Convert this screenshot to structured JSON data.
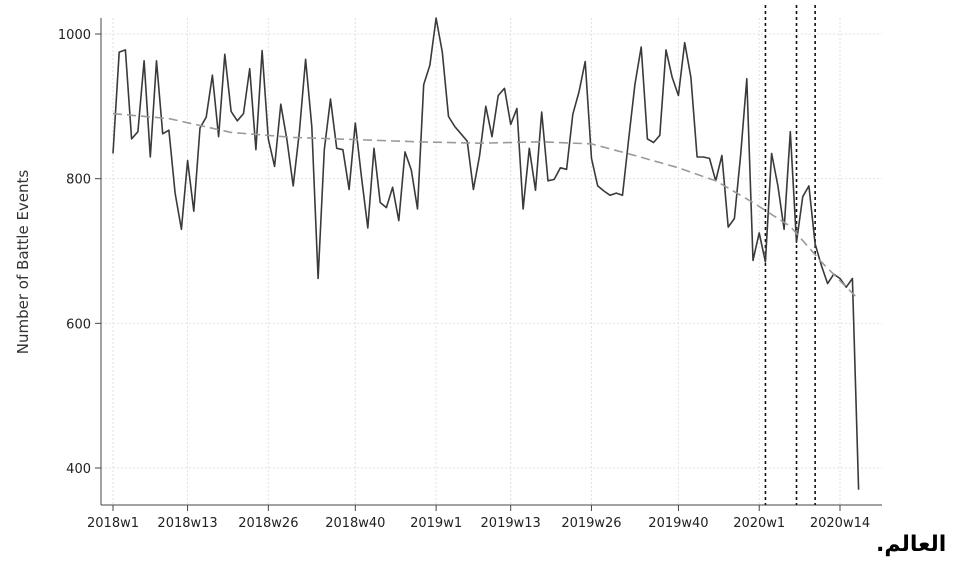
{
  "caption": "العالم.",
  "chart_data": {
    "type": "line",
    "title": "",
    "xlabel": "",
    "ylabel": "Number of Battle Events",
    "ylim": [
      350,
      1030
    ],
    "yticks": [
      400,
      600,
      800,
      1000
    ],
    "x_tick_labels": [
      "2018w1",
      "2018w13",
      "2018w26",
      "2018w40",
      "2019w1",
      "2019w13",
      "2019w26",
      "2019w40",
      "2020w1",
      "2020w14"
    ],
    "x_tick_weeks": [
      1,
      13,
      26,
      40,
      53,
      65,
      78,
      92,
      105,
      118
    ],
    "grid": true,
    "vertical_dashed_lines_weeks": [
      106,
      111,
      114
    ],
    "series": [
      {
        "style": "solid",
        "x": [
          1,
          2,
          3,
          4,
          5,
          6,
          7,
          8,
          9,
          10,
          11,
          12,
          13,
          14,
          15,
          16,
          17,
          18,
          19,
          20,
          21,
          22,
          23,
          24,
          25,
          26,
          27,
          28,
          29,
          30,
          31,
          32,
          33,
          34,
          35,
          36,
          37,
          38,
          39,
          40,
          41,
          42,
          43,
          44,
          45,
          46,
          47,
          48,
          49,
          50,
          51,
          52,
          53,
          54,
          55,
          56,
          57,
          58,
          59,
          60,
          61,
          62,
          63,
          64,
          65,
          66,
          67,
          68,
          69,
          70,
          71,
          72,
          73,
          74,
          75,
          76,
          77,
          78,
          79,
          80,
          81,
          82,
          83,
          84,
          85,
          86,
          87,
          88,
          89,
          90,
          91,
          92,
          93,
          94,
          95,
          96,
          97,
          98,
          99,
          100,
          101,
          102,
          103,
          104,
          105,
          106,
          107,
          108,
          109,
          110,
          111,
          112,
          113,
          114,
          115,
          116,
          117,
          118,
          119,
          120,
          121
        ],
        "values": [
          835,
          975,
          978,
          855,
          865,
          963,
          830,
          963,
          862,
          867,
          780,
          730,
          825,
          755,
          870,
          885,
          943,
          858,
          972,
          893,
          880,
          890,
          952,
          840,
          977,
          855,
          817,
          903,
          853,
          790,
          865,
          965,
          872,
          662,
          840,
          910,
          842,
          840,
          785,
          877,
          802,
          732,
          842,
          767,
          760,
          788,
          742,
          837,
          812,
          758,
          930,
          957,
          1022,
          975,
          886,
          872,
          862,
          852,
          785,
          832,
          900,
          858,
          915,
          925,
          875,
          897,
          758,
          842,
          784,
          892,
          797,
          799,
          815,
          813,
          889,
          920,
          962,
          828,
          790,
          783,
          777,
          780,
          777,
          855,
          930,
          982,
          855,
          850,
          860,
          978,
          940,
          915,
          988,
          940,
          830,
          830,
          828,
          797,
          832,
          733,
          745,
          832,
          938,
          687,
          725,
          685,
          835,
          790,
          730,
          865,
          712,
          775,
          790,
          710,
          680,
          655,
          668,
          662,
          650,
          662,
          370
        ]
      },
      {
        "style": "dashed",
        "x": [
          1,
          10,
          20,
          30,
          40,
          50,
          60,
          70,
          78,
          85,
          92,
          98,
          104,
          110,
          115,
          121
        ],
        "values": [
          890,
          883,
          864,
          857,
          854,
          851,
          849,
          851,
          848,
          832,
          815,
          797,
          767,
          734,
          685,
          633
        ]
      }
    ]
  }
}
